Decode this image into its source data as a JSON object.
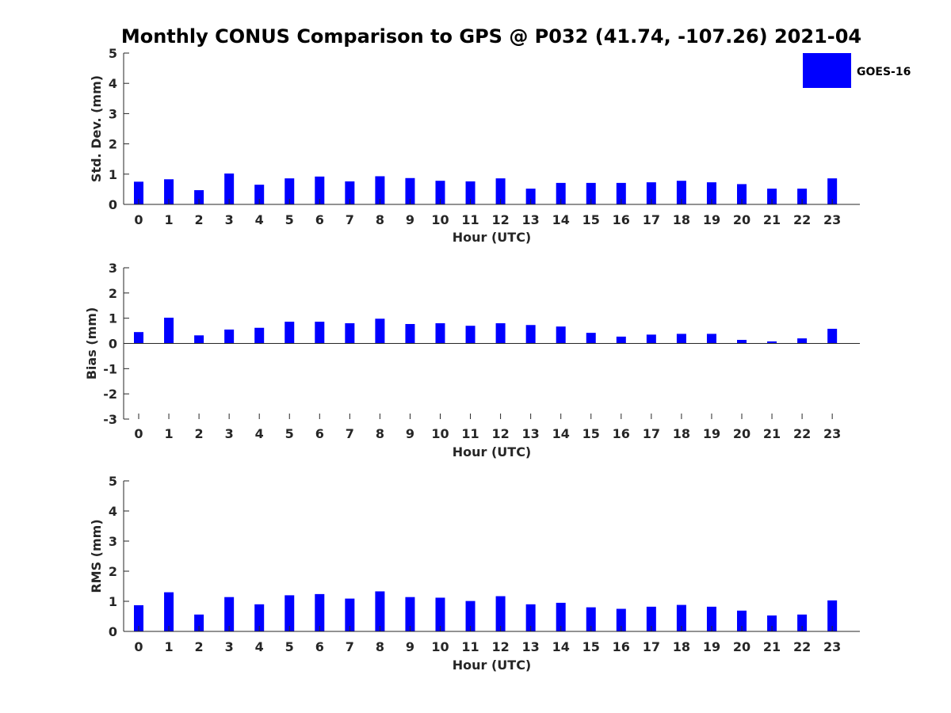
{
  "title": "Monthly CONUS Comparison to GPS @ P032 (41.74, -107.26) 2021-04",
  "legend": {
    "label": "GOES-16",
    "color": "#0000ff"
  },
  "chart_data": [
    {
      "type": "bar",
      "categories": [
        "0",
        "1",
        "2",
        "3",
        "4",
        "5",
        "6",
        "7",
        "8",
        "9",
        "10",
        "11",
        "12",
        "13",
        "14",
        "15",
        "16",
        "17",
        "18",
        "19",
        "20",
        "21",
        "22",
        "23"
      ],
      "series": [
        {
          "name": "GOES-16",
          "values": [
            0.75,
            0.83,
            0.47,
            1.02,
            0.65,
            0.86,
            0.92,
            0.76,
            0.93,
            0.87,
            0.78,
            0.76,
            0.86,
            0.52,
            0.71,
            0.71,
            0.71,
            0.73,
            0.78,
            0.73,
            0.67,
            0.52,
            0.52,
            0.86
          ]
        }
      ],
      "xlabel": "Hour (UTC)",
      "ylabel": "Std. Dev. (mm)",
      "ylim": [
        0,
        5
      ],
      "yticks": [
        "0",
        "1",
        "2",
        "3",
        "4",
        "5"
      ],
      "grid": false,
      "legend_position": "top-right"
    },
    {
      "type": "bar",
      "categories": [
        "0",
        "1",
        "2",
        "3",
        "4",
        "5",
        "6",
        "7",
        "8",
        "9",
        "10",
        "11",
        "12",
        "13",
        "14",
        "15",
        "16",
        "17",
        "18",
        "19",
        "20",
        "21",
        "22",
        "23"
      ],
      "series": [
        {
          "name": "GOES-16",
          "values": [
            0.45,
            1.02,
            0.32,
            0.55,
            0.62,
            0.86,
            0.86,
            0.8,
            0.98,
            0.77,
            0.8,
            0.7,
            0.8,
            0.73,
            0.67,
            0.42,
            0.27,
            0.35,
            0.38,
            0.38,
            0.14,
            0.08,
            0.2,
            0.58
          ]
        }
      ],
      "xlabel": "Hour (UTC)",
      "ylabel": "Bias (mm)",
      "ylim": [
        -3,
        3
      ],
      "yticks": [
        "-3",
        "-2",
        "-1",
        "0",
        "1",
        "2",
        "3"
      ],
      "grid": false
    },
    {
      "type": "bar",
      "categories": [
        "0",
        "1",
        "2",
        "3",
        "4",
        "5",
        "6",
        "7",
        "8",
        "9",
        "10",
        "11",
        "12",
        "13",
        "14",
        "15",
        "16",
        "17",
        "18",
        "19",
        "20",
        "21",
        "22",
        "23"
      ],
      "series": [
        {
          "name": "GOES-16",
          "values": [
            0.87,
            1.3,
            0.56,
            1.14,
            0.9,
            1.2,
            1.24,
            1.09,
            1.33,
            1.14,
            1.12,
            1.01,
            1.17,
            0.9,
            0.95,
            0.8,
            0.75,
            0.82,
            0.88,
            0.82,
            0.69,
            0.53,
            0.56,
            1.03
          ]
        }
      ],
      "xlabel": "Hour (UTC)",
      "ylabel": "RMS (mm)",
      "ylim": [
        0,
        5
      ],
      "yticks": [
        "0",
        "1",
        "2",
        "3",
        "4",
        "5"
      ],
      "grid": false
    }
  ]
}
